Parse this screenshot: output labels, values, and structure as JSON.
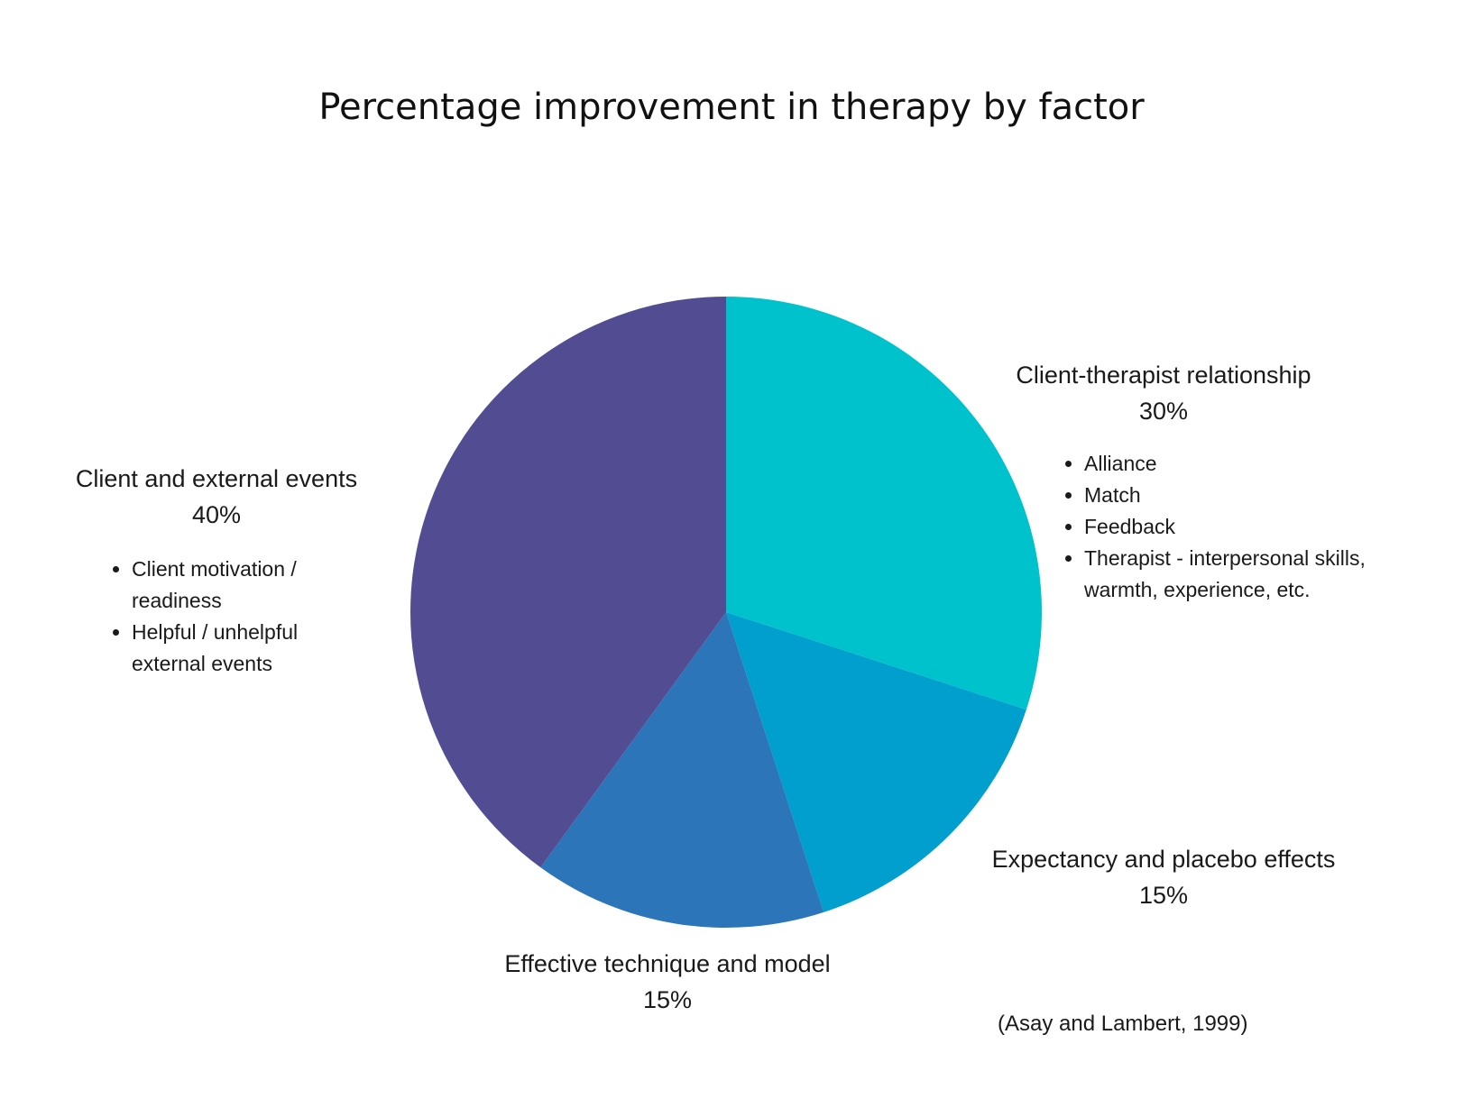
{
  "chart_data": {
    "type": "pie",
    "title": "Percentage improvement in therapy by factor",
    "start_angle_deg": 0,
    "direction": "clockwise",
    "slices": [
      {
        "label": "Client-therapist relationship",
        "value": 30,
        "value_label": "30%",
        "color": "#00C2CC",
        "bullets": [
          "Alliance",
          "Match",
          "Feedback",
          "Therapist - interpersonal skills, warmth, experience, etc."
        ]
      },
      {
        "label": "Expectancy and placebo effects",
        "value": 15,
        "value_label": "15%",
        "color": "#009FCE",
        "bullets": []
      },
      {
        "label": "Effective technique and model",
        "value": 15,
        "value_label": "15%",
        "color": "#2C75B8",
        "bullets": []
      },
      {
        "label": "Client and external events",
        "value": 40,
        "value_label": "40%",
        "color": "#524D92",
        "bullets": [
          "Client motivation / readiness",
          "Helpful / unhelpful external events"
        ]
      }
    ],
    "source": "(Asay and Lambert, 1999)"
  }
}
